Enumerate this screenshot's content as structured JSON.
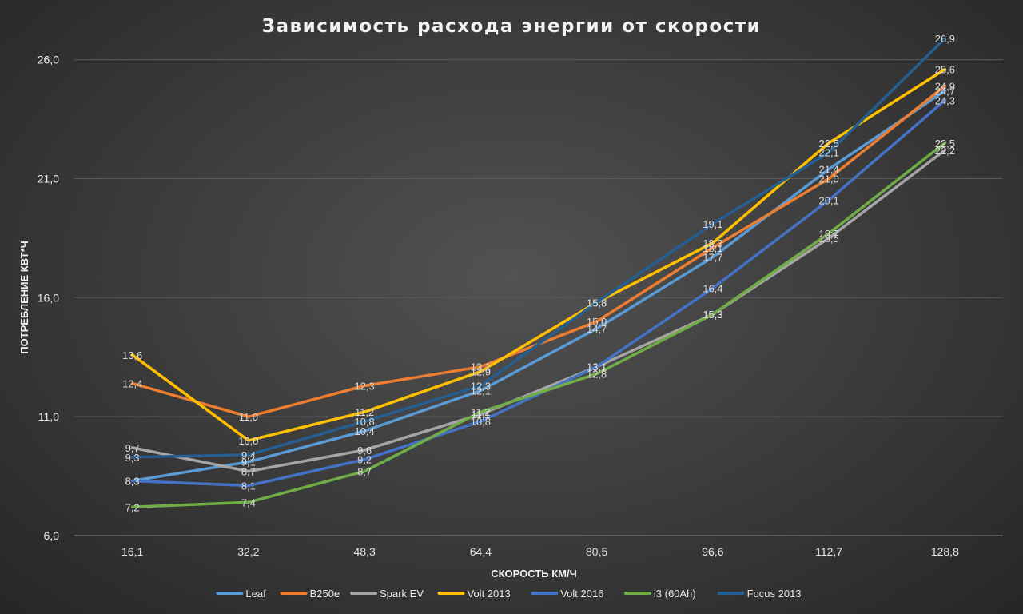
{
  "chart_data": {
    "type": "line",
    "title": "Зависимость расхода энергии от скорости",
    "xlabel": "СКОРОСТЬ КМ/Ч",
    "ylabel": "ПОТРЕБЛЕНИЕ КВТ*Ч",
    "categories": [
      "16,1",
      "32,2",
      "48,3",
      "64,4",
      "80,5",
      "96,6",
      "112,7",
      "128,8"
    ],
    "ylim": [
      6.0,
      27.5
    ],
    "yticks": [
      "6,0",
      "11,0",
      "16,0",
      "21,0",
      "26,0"
    ],
    "ytick_values": [
      6.0,
      11.0,
      16.0,
      21.0,
      26.0
    ],
    "grid": true,
    "legend_position": "bottom",
    "series": [
      {
        "name": "Leaf",
        "color": "#5b9bd5",
        "values": [
          8.3,
          9.1,
          10.4,
          12.1,
          14.7,
          17.7,
          21.4,
          24.7
        ],
        "labels": [
          "8,3",
          "9,1",
          "10,4",
          "12,1",
          "14,7",
          "17,7",
          "21,4",
          "24,7"
        ]
      },
      {
        "name": "B250e",
        "color": "#ed7d31",
        "values": [
          12.4,
          11.0,
          12.3,
          13.1,
          15.0,
          18.1,
          21.0,
          24.9
        ],
        "labels": [
          "12,4",
          "11,0",
          "12,3",
          "13,1",
          "15,0",
          "18,1",
          "21,0",
          "24,9"
        ]
      },
      {
        "name": "Spark EV",
        "color": "#a5a5a5",
        "values": [
          9.7,
          8.7,
          9.6,
          11.1,
          13.1,
          15.3,
          18.5,
          22.2
        ],
        "labels": [
          "9,7",
          "8,7",
          "9,6",
          "11,1",
          "13,1",
          "15,3",
          "18,5",
          "22,2"
        ]
      },
      {
        "name": "Volt 2013",
        "color": "#ffc000",
        "values": [
          13.6,
          10.0,
          11.2,
          12.9,
          15.8,
          18.3,
          22.5,
          25.6
        ],
        "labels": [
          "13,6",
          "10,0",
          "11,2",
          "12,9",
          "15,8",
          "18,3",
          "22,5",
          "25,6"
        ]
      },
      {
        "name": "Volt 2016",
        "color": "#4472c4",
        "values": [
          8.3,
          8.1,
          9.2,
          10.8,
          13.1,
          16.4,
          20.1,
          24.3
        ],
        "labels": [
          "8,3",
          "8,1",
          "9,2",
          "10,8",
          "13,1",
          "16,4",
          "20,1",
          "24,3"
        ]
      },
      {
        "name": "i3 (60Ah)",
        "color": "#70ad47",
        "values": [
          7.2,
          7.4,
          8.7,
          11.2,
          12.8,
          15.3,
          18.7,
          22.5
        ],
        "labels": [
          "7,2",
          "7,4",
          "8,7",
          "11,2",
          "12,8",
          "15,3",
          "18,7",
          "22,5"
        ]
      },
      {
        "name": "Focus 2013",
        "color": "#255e91",
        "values": [
          9.3,
          9.4,
          10.8,
          12.3,
          15.8,
          19.1,
          22.1,
          26.9
        ],
        "labels": [
          "9,3",
          "9,4",
          "10,8",
          "12,3",
          "15,8",
          "19,1",
          "22,1",
          "26,9"
        ]
      }
    ]
  }
}
